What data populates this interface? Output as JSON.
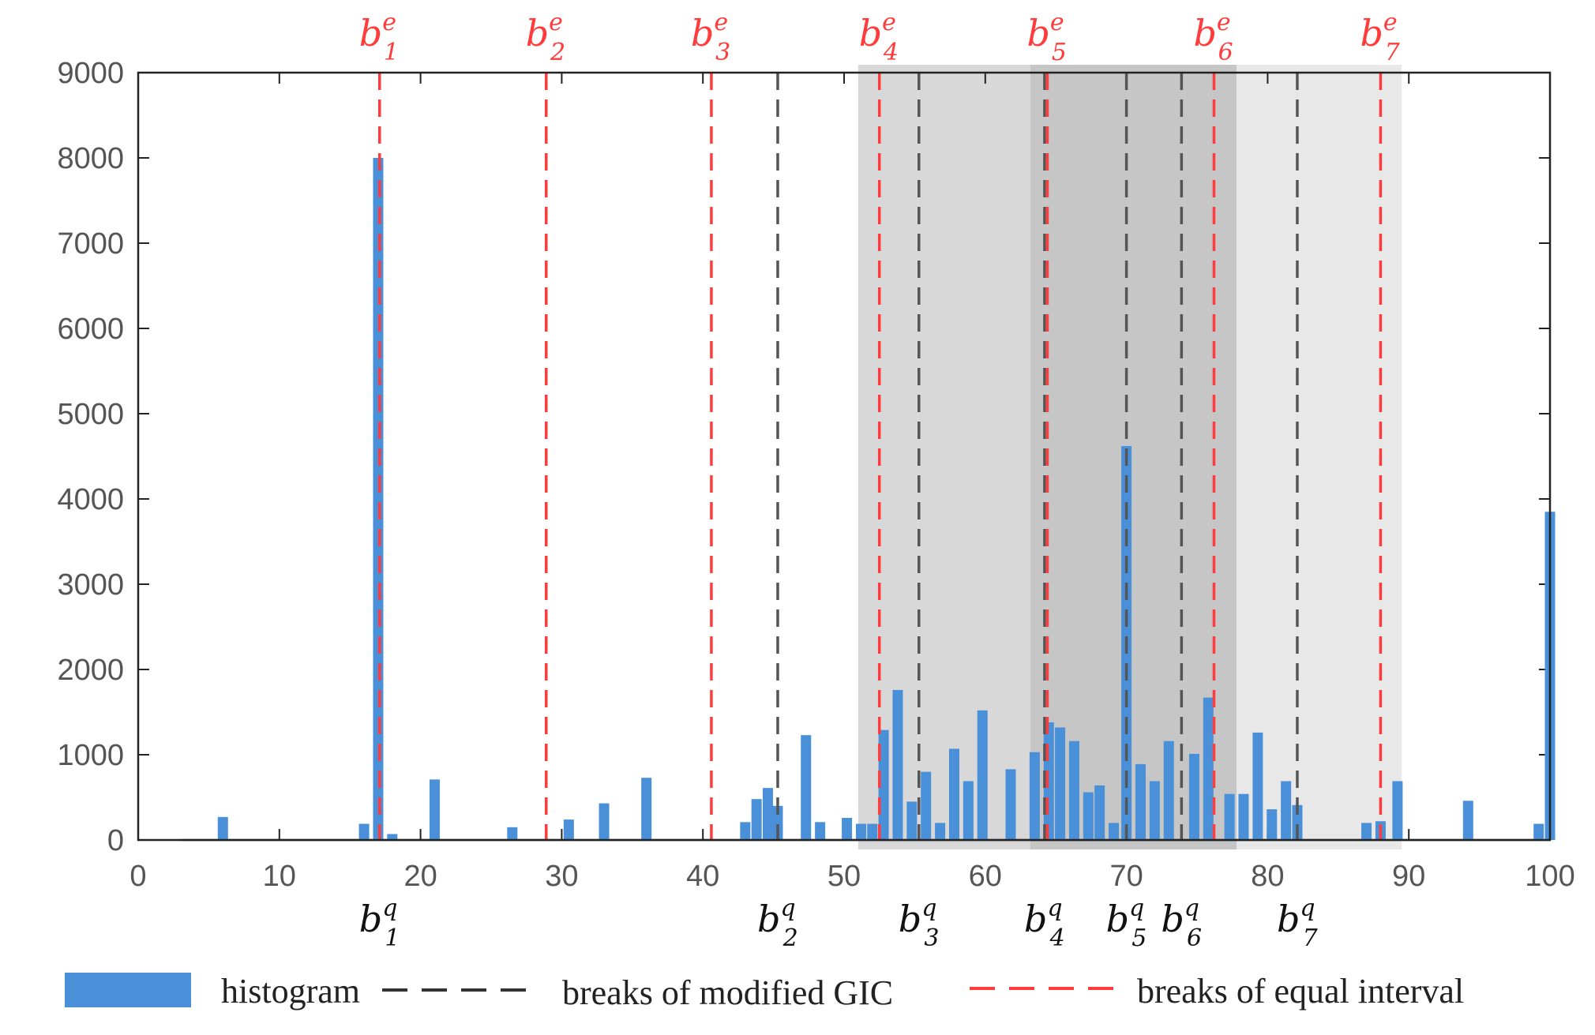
{
  "chart_data": {
    "type": "bar",
    "title": "",
    "xlabel": "",
    "ylabel": "",
    "xlim": [
      0,
      100
    ],
    "ylim": [
      0,
      9000
    ],
    "x_ticks": [
      0,
      10,
      20,
      30,
      40,
      50,
      60,
      70,
      80,
      90,
      100
    ],
    "y_ticks": [
      0,
      1000,
      2000,
      3000,
      4000,
      5000,
      6000,
      7000,
      8000,
      9000
    ],
    "histogram": {
      "name": "histogram",
      "color": "#4a90d9",
      "points": [
        {
          "x": 6,
          "y": 270
        },
        {
          "x": 16,
          "y": 190
        },
        {
          "x": 17,
          "y": 8000
        },
        {
          "x": 18,
          "y": 70
        },
        {
          "x": 21,
          "y": 710
        },
        {
          "x": 26.5,
          "y": 150
        },
        {
          "x": 30.5,
          "y": 240
        },
        {
          "x": 33,
          "y": 430
        },
        {
          "x": 36,
          "y": 730
        },
        {
          "x": 43,
          "y": 210
        },
        {
          "x": 43.8,
          "y": 480
        },
        {
          "x": 44.6,
          "y": 610
        },
        {
          "x": 45.3,
          "y": 400
        },
        {
          "x": 47.3,
          "y": 1230
        },
        {
          "x": 48.3,
          "y": 210
        },
        {
          "x": 50.2,
          "y": 260
        },
        {
          "x": 51.2,
          "y": 190
        },
        {
          "x": 52,
          "y": 190
        },
        {
          "x": 52.8,
          "y": 1290
        },
        {
          "x": 53.8,
          "y": 1760
        },
        {
          "x": 54.8,
          "y": 450
        },
        {
          "x": 55.8,
          "y": 800
        },
        {
          "x": 56.8,
          "y": 200
        },
        {
          "x": 57.8,
          "y": 1070
        },
        {
          "x": 58.8,
          "y": 690
        },
        {
          "x": 59.8,
          "y": 1520
        },
        {
          "x": 61.8,
          "y": 830
        },
        {
          "x": 63.5,
          "y": 1030
        },
        {
          "x": 64.5,
          "y": 1380
        },
        {
          "x": 65.3,
          "y": 1320
        },
        {
          "x": 66.3,
          "y": 1160
        },
        {
          "x": 67.3,
          "y": 560
        },
        {
          "x": 68.1,
          "y": 640
        },
        {
          "x": 69.1,
          "y": 200
        },
        {
          "x": 70,
          "y": 4620
        },
        {
          "x": 71,
          "y": 890
        },
        {
          "x": 72,
          "y": 690
        },
        {
          "x": 73,
          "y": 1160
        },
        {
          "x": 74.8,
          "y": 1010
        },
        {
          "x": 75.8,
          "y": 1670
        },
        {
          "x": 77.3,
          "y": 540
        },
        {
          "x": 78.3,
          "y": 540
        },
        {
          "x": 79.3,
          "y": 1260
        },
        {
          "x": 80.3,
          "y": 360
        },
        {
          "x": 81.3,
          "y": 690
        },
        {
          "x": 82.1,
          "y": 410
        },
        {
          "x": 87,
          "y": 200
        },
        {
          "x": 88,
          "y": 220
        },
        {
          "x": 89.2,
          "y": 690
        },
        {
          "x": 94.2,
          "y": 460
        },
        {
          "x": 99.2,
          "y": 190
        },
        {
          "x": 100,
          "y": 3850
        }
      ]
    },
    "shaded_regions": [
      {
        "x0": 51,
        "x1": 63.2,
        "shade": "#d8d8d8"
      },
      {
        "x0": 63.2,
        "x1": 77.8,
        "shade": "#c6c6c6"
      },
      {
        "x0": 77.8,
        "x1": 89.5,
        "shade": "#e8e8e8"
      }
    ],
    "breaks_equal_interval": {
      "name": "breaks of equal interval",
      "color": "#ff3b3b",
      "x": [
        17.1,
        28.9,
        40.6,
        52.5,
        64.4,
        76.2,
        88.0
      ],
      "labels": [
        {
          "base": "b",
          "sub": "1",
          "sup": "e"
        },
        {
          "base": "b",
          "sub": "2",
          "sup": "e"
        },
        {
          "base": "b",
          "sub": "3",
          "sup": "e"
        },
        {
          "base": "b",
          "sub": "4",
          "sup": "e"
        },
        {
          "base": "b",
          "sub": "5",
          "sup": "e"
        },
        {
          "base": "b",
          "sub": "6",
          "sup": "e"
        },
        {
          "base": "b",
          "sub": "7",
          "sup": "e"
        }
      ]
    },
    "breaks_modified_gic": {
      "name": "breaks of modified GIC",
      "color": "#555555",
      "x": [
        17.1,
        45.3,
        55.3,
        64.2,
        70.0,
        73.9,
        82.1
      ],
      "labels": [
        {
          "base": "b",
          "sub": "1",
          "sup": "q"
        },
        {
          "base": "b",
          "sub": "2",
          "sup": "q"
        },
        {
          "base": "b",
          "sub": "3",
          "sup": "q"
        },
        {
          "base": "b",
          "sub": "4",
          "sup": "q"
        },
        {
          "base": "b",
          "sub": "5",
          "sup": "q"
        },
        {
          "base": "b",
          "sub": "6",
          "sup": "q"
        },
        {
          "base": "b",
          "sub": "7",
          "sup": "q"
        }
      ]
    },
    "legend": {
      "placement": "bottom",
      "entries": [
        {
          "label": "histogram",
          "kind": "patch",
          "color": "#4a90d9"
        },
        {
          "label": "breaks of modified GIC",
          "kind": "dash",
          "color": "#333333"
        },
        {
          "label": "breaks of equal interval",
          "kind": "dash",
          "color": "#ff3b3b"
        }
      ]
    }
  }
}
